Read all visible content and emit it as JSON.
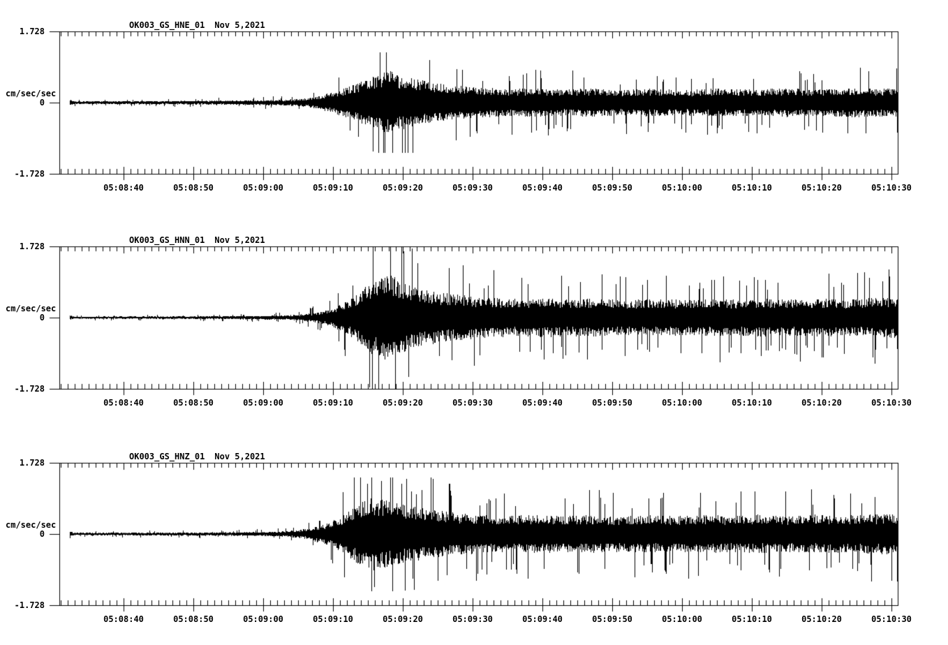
{
  "colors": {
    "background": "#ffffff",
    "ink": "#000000"
  },
  "chart_data": [
    {
      "type": "line",
      "kind": "seismogram",
      "title": "OK003_GS_HNE_01",
      "date_label": "Nov 5,2021",
      "units_label": "cm/sec/sec",
      "y_top_label": "1.728",
      "y_zero_label": "0",
      "y_bottom_label": "-1.728",
      "ylim": [
        -1.728,
        1.728
      ],
      "x_range_sec_of_hour": [
        510.8,
        630.9
      ],
      "minor_tick_interval_sec": 1,
      "major_tick_interval_sec": 10,
      "x_ticks": [
        {
          "sec": 520,
          "label": "05:08:40"
        },
        {
          "sec": 530,
          "label": "05:08:50"
        },
        {
          "sec": 540,
          "label": "05:09:00"
        },
        {
          "sec": 550,
          "label": "05:09:10"
        },
        {
          "sec": 560,
          "label": "05:09:20"
        },
        {
          "sec": 570,
          "label": "05:09:30"
        },
        {
          "sec": 580,
          "label": "05:09:40"
        },
        {
          "sec": 590,
          "label": "05:09:50"
        },
        {
          "sec": 600,
          "label": "05:10:00"
        },
        {
          "sec": 610,
          "label": "05:10:10"
        },
        {
          "sec": 620,
          "label": "05:10:20"
        },
        {
          "sec": 630,
          "label": "05:10:30"
        }
      ],
      "envelope_sec_amp": [
        [
          512.3,
          0.07
        ],
        [
          513,
          0.035
        ],
        [
          520,
          0.04
        ],
        [
          528,
          0.045
        ],
        [
          535,
          0.05
        ],
        [
          540,
          0.06
        ],
        [
          543,
          0.07
        ],
        [
          546,
          0.1
        ],
        [
          548,
          0.16
        ],
        [
          550,
          0.26
        ],
        [
          552,
          0.38
        ],
        [
          554,
          0.52
        ],
        [
          555.5,
          0.62
        ],
        [
          557,
          0.72
        ],
        [
          558,
          0.78
        ],
        [
          559,
          0.7
        ],
        [
          560.5,
          0.62
        ],
        [
          562,
          0.58
        ],
        [
          564,
          0.5
        ],
        [
          566,
          0.44
        ],
        [
          569,
          0.4
        ],
        [
          572,
          0.36
        ],
        [
          575,
          0.33
        ],
        [
          579,
          0.36
        ],
        [
          583,
          0.32
        ],
        [
          587,
          0.35
        ],
        [
          591,
          0.31
        ],
        [
          595,
          0.34
        ],
        [
          600,
          0.31
        ],
        [
          605,
          0.34
        ],
        [
          610,
          0.32
        ],
        [
          615,
          0.35
        ],
        [
          620,
          0.33
        ],
        [
          625,
          0.36
        ],
        [
          628,
          0.34
        ],
        [
          631,
          0.36
        ]
      ],
      "peak_amp": 1.2,
      "spike_probability": 0.06,
      "spike_cap": 1.22,
      "end_drop_amp": -0.72,
      "seed": 11
    },
    {
      "type": "line",
      "kind": "seismogram",
      "title": "OK003_GS_HNN_01",
      "date_label": "Nov 5,2021",
      "units_label": "cm/sec/sec",
      "y_top_label": "1.728",
      "y_zero_label": "0",
      "y_bottom_label": "-1.728",
      "ylim": [
        -1.728,
        1.728
      ],
      "x_range_sec_of_hour": [
        510.8,
        630.9
      ],
      "minor_tick_interval_sec": 1,
      "major_tick_interval_sec": 10,
      "x_ticks": [
        {
          "sec": 520,
          "label": "05:08:40"
        },
        {
          "sec": 530,
          "label": "05:08:50"
        },
        {
          "sec": 540,
          "label": "05:09:00"
        },
        {
          "sec": 550,
          "label": "05:09:10"
        },
        {
          "sec": 560,
          "label": "05:09:20"
        },
        {
          "sec": 570,
          "label": "05:09:30"
        },
        {
          "sec": 580,
          "label": "05:09:40"
        },
        {
          "sec": 590,
          "label": "05:09:50"
        },
        {
          "sec": 600,
          "label": "05:10:00"
        },
        {
          "sec": 610,
          "label": "05:10:10"
        },
        {
          "sec": 620,
          "label": "05:10:20"
        },
        {
          "sec": 630,
          "label": "05:10:30"
        }
      ],
      "envelope_sec_amp": [
        [
          512.3,
          0.06
        ],
        [
          513,
          0.025
        ],
        [
          522,
          0.03
        ],
        [
          532,
          0.035
        ],
        [
          540,
          0.045
        ],
        [
          544,
          0.06
        ],
        [
          546,
          0.09
        ],
        [
          548,
          0.14
        ],
        [
          550,
          0.24
        ],
        [
          552,
          0.42
        ],
        [
          554,
          0.65
        ],
        [
          555.5,
          0.9
        ],
        [
          557,
          1.05
        ],
        [
          558,
          1.1
        ],
        [
          559,
          0.95
        ],
        [
          560,
          0.85
        ],
        [
          561.5,
          0.75
        ],
        [
          563,
          0.68
        ],
        [
          565,
          0.62
        ],
        [
          567,
          0.58
        ],
        [
          570,
          0.52
        ],
        [
          573,
          0.48
        ],
        [
          576,
          0.45
        ],
        [
          580,
          0.48
        ],
        [
          584,
          0.44
        ],
        [
          588,
          0.47
        ],
        [
          592,
          0.43
        ],
        [
          596,
          0.46
        ],
        [
          600,
          0.43
        ],
        [
          604,
          0.46
        ],
        [
          608,
          0.44
        ],
        [
          612,
          0.47
        ],
        [
          616,
          0.44
        ],
        [
          620,
          0.46
        ],
        [
          624,
          0.44
        ],
        [
          627,
          0.48
        ],
        [
          631,
          0.5
        ]
      ],
      "peak_amp": 1.728,
      "spike_probability": 0.07,
      "spike_cap": 1.728,
      "end_drop_amp": -0.76,
      "seed": 22
    },
    {
      "type": "line",
      "kind": "seismogram",
      "title": "OK003_GS_HNZ_01",
      "date_label": "Nov 5,2021",
      "units_label": "cm/sec/sec",
      "y_top_label": "1.728",
      "y_zero_label": "0",
      "y_bottom_label": "-1.728",
      "ylim": [
        -1.728,
        1.728
      ],
      "x_range_sec_of_hour": [
        510.8,
        630.9
      ],
      "minor_tick_interval_sec": 1,
      "major_tick_interval_sec": 10,
      "x_ticks": [
        {
          "sec": 520,
          "label": "05:08:40"
        },
        {
          "sec": 530,
          "label": "05:08:50"
        },
        {
          "sec": 540,
          "label": "05:09:00"
        },
        {
          "sec": 550,
          "label": "05:09:10"
        },
        {
          "sec": 560,
          "label": "05:09:20"
        },
        {
          "sec": 570,
          "label": "05:09:30"
        },
        {
          "sec": 580,
          "label": "05:09:40"
        },
        {
          "sec": 590,
          "label": "05:09:50"
        },
        {
          "sec": 600,
          "label": "05:10:00"
        },
        {
          "sec": 610,
          "label": "05:10:10"
        },
        {
          "sec": 620,
          "label": "05:10:20"
        },
        {
          "sec": 630,
          "label": "05:10:30"
        }
      ],
      "envelope_sec_amp": [
        [
          512.3,
          0.06
        ],
        [
          513,
          0.03
        ],
        [
          522,
          0.035
        ],
        [
          532,
          0.04
        ],
        [
          540,
          0.05
        ],
        [
          543,
          0.07
        ],
        [
          545,
          0.1
        ],
        [
          547,
          0.16
        ],
        [
          549,
          0.26
        ],
        [
          551,
          0.42
        ],
        [
          552.5,
          0.6
        ],
        [
          554,
          0.78
        ],
        [
          555.5,
          0.88
        ],
        [
          557,
          0.85
        ],
        [
          558.5,
          0.8
        ],
        [
          560,
          0.72
        ],
        [
          562,
          0.65
        ],
        [
          564,
          0.6
        ],
        [
          566,
          0.55
        ],
        [
          569,
          0.5
        ],
        [
          572,
          0.46
        ],
        [
          575,
          0.44
        ],
        [
          579,
          0.47
        ],
        [
          583,
          0.43
        ],
        [
          587,
          0.46
        ],
        [
          591,
          0.43
        ],
        [
          595,
          0.46
        ],
        [
          599,
          0.43
        ],
        [
          603,
          0.47
        ],
        [
          607,
          0.44
        ],
        [
          611,
          0.47
        ],
        [
          615,
          0.44
        ],
        [
          619,
          0.47
        ],
        [
          623,
          0.45
        ],
        [
          627,
          0.48
        ],
        [
          631,
          0.5
        ]
      ],
      "peak_amp": 1.35,
      "spike_probability": 0.065,
      "spike_cap": 1.38,
      "end_drop_amp": -1.15,
      "seed": 33
    }
  ]
}
